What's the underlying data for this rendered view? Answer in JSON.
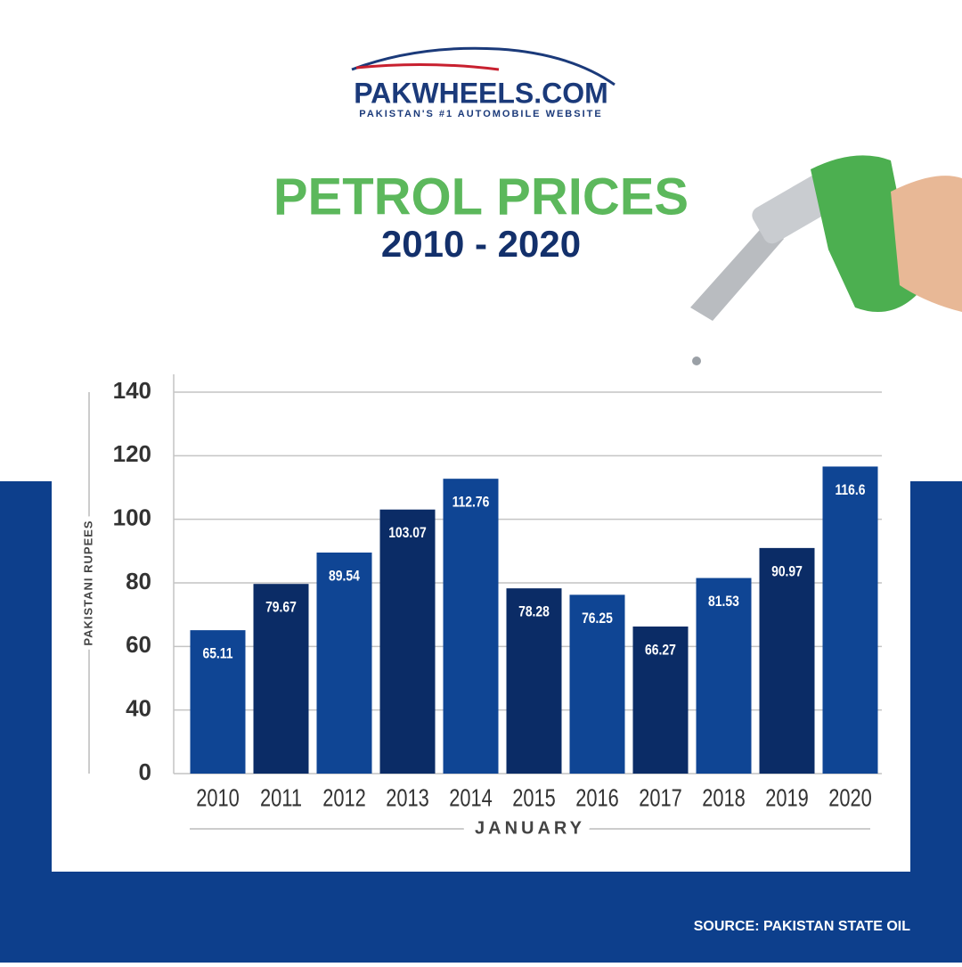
{
  "header": {
    "brand": "PAKWHEELS.COM",
    "tagline": "PAKISTAN'S #1 AUTOMOBILE WEBSITE"
  },
  "chart_data": {
    "type": "bar",
    "title": "PETROL PRICES",
    "subtitle": "2010 - 2020",
    "y_label": "PAKISTANI RUPEES",
    "x_label": "JANUARY",
    "categories": [
      "2010",
      "2011",
      "2012",
      "2013",
      "2014",
      "2015",
      "2016",
      "2017",
      "2018",
      "2019",
      "2020"
    ],
    "values": [
      65.11,
      79.67,
      89.54,
      103.07,
      112.76,
      78.28,
      76.25,
      66.27,
      81.53,
      90.97,
      116.6
    ],
    "colors": [
      "#0f4594",
      "#0b2c66",
      "#0f4594",
      "#0b2c66",
      "#0f4594",
      "#0b2c66",
      "#0f4594",
      "#0b2c66",
      "#0f4594",
      "#0b2c66",
      "#0f4594"
    ],
    "ylim": [
      0,
      140
    ],
    "yticks": [
      0,
      40,
      60,
      80,
      100,
      120,
      140
    ],
    "grid": true
  },
  "footer": {
    "source": "SOURCE: PAKISTAN STATE OIL"
  }
}
